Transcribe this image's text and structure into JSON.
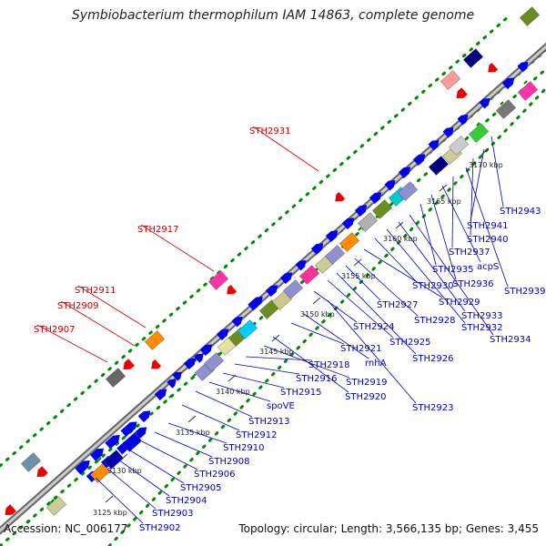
{
  "title": "Symbiobacterium thermophilum IAM 14863, complete genome",
  "footer": {
    "accession": "Accession: NC_006177",
    "summary": "Topology: circular; Length: 3,566,135 bp; Genes: 3,455"
  },
  "colors": {
    "forward_gene": "#0000ee",
    "reverse_gene": "#ee0000",
    "forward_label": "#0000cc",
    "reverse_label": "#cc0000",
    "tick": "#008800",
    "backbone": "#888888"
  },
  "kbp_ticks": [
    "3125 kbp",
    "3130 kbp",
    "3135 kbp",
    "3140 kbp",
    "3145 kbp",
    "3150 kbp",
    "3155 kbp",
    "3160 kbp",
    "3165 kbp",
    "3170 kbp"
  ],
  "forward_labels": [
    "STH2902",
    "STH2903",
    "STH2904",
    "STH2905",
    "STH2906",
    "STH2908",
    "STH2910",
    "STH2912",
    "STH2913",
    "spoVE",
    "STH2915",
    "STH2916",
    "STH2918",
    "STH2919",
    "STH2920",
    "STH2921",
    "rnhA",
    "STH2923",
    "STH2924",
    "STH2925",
    "STH2926",
    "STH2927",
    "STH2928",
    "STH2929",
    "STH2930",
    "STH2932",
    "STH2933",
    "STH2934",
    "STH2935",
    "STH2936",
    "acpS",
    "STH2937",
    "STH2939",
    "STH2940",
    "STH2941",
    "STH2943"
  ],
  "reverse_labels": [
    "STH2907",
    "STH2909",
    "STH2911",
    "STH2917",
    "STH2931"
  ]
}
